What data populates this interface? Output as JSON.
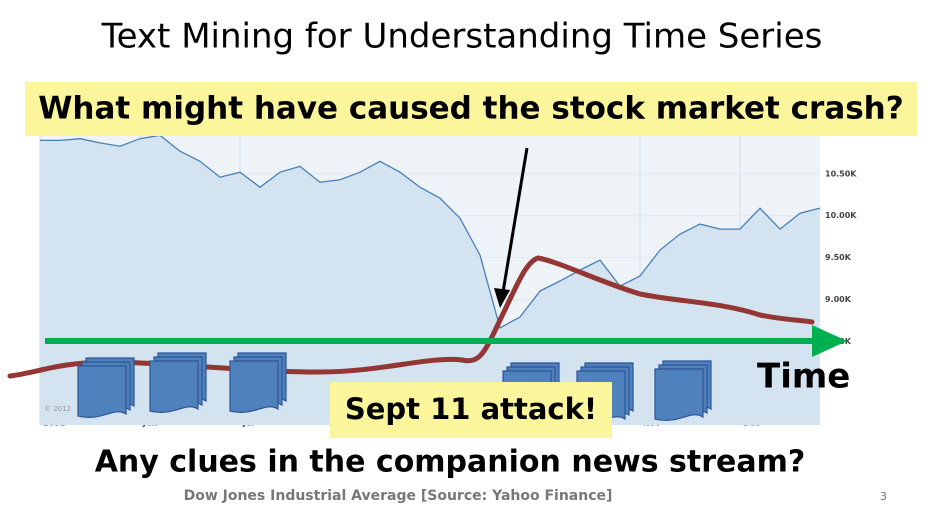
{
  "title": "Text Mining for Understanding Time Series",
  "question": "What might have caused the stock market crash?",
  "time_label": "Time",
  "event_label": "Sept 11 attack!",
  "bottom_question": "Any clues in the companion news stream?",
  "source": "Dow Jones Industrial Average [Source: Yahoo Finance]",
  "page_number": "3",
  "chart_data": {
    "type": "line",
    "categories": [
      "2001",
      null,
      null,
      null,
      null,
      "Jun",
      null,
      null,
      null,
      null,
      "Jul",
      null,
      null,
      null,
      null,
      null,
      null,
      null,
      null,
      null,
      null,
      null,
      null,
      null,
      null,
      null,
      null,
      null,
      null,
      null,
      "Nov",
      null,
      null,
      null,
      null,
      "Dec",
      null,
      null,
      null,
      null
    ],
    "values": [
      10900,
      10900,
      10920,
      10870,
      10830,
      10920,
      10960,
      10770,
      10650,
      10460,
      10520,
      10340,
      10520,
      10590,
      10400,
      10430,
      10520,
      10650,
      10520,
      10340,
      10210,
      9970,
      9530,
      8660,
      8790,
      9100,
      9220,
      9350,
      9470,
      9160,
      9280,
      9590,
      9780,
      9900,
      9840,
      9840,
      10090,
      9840,
      10030,
      10090
    ],
    "color": "#4a7fb5",
    "ylim": [
      7500,
      11000
    ],
    "yticks": [
      {
        "value": 8500,
        "label": "8.50K"
      },
      {
        "value": 9000,
        "label": "9.00K"
      },
      {
        "value": 9500,
        "label": "9.50K"
      },
      {
        "value": 10000,
        "label": "10.00K"
      },
      {
        "value": 10500,
        "label": "10.50K"
      }
    ],
    "copyright": "© 2012"
  }
}
